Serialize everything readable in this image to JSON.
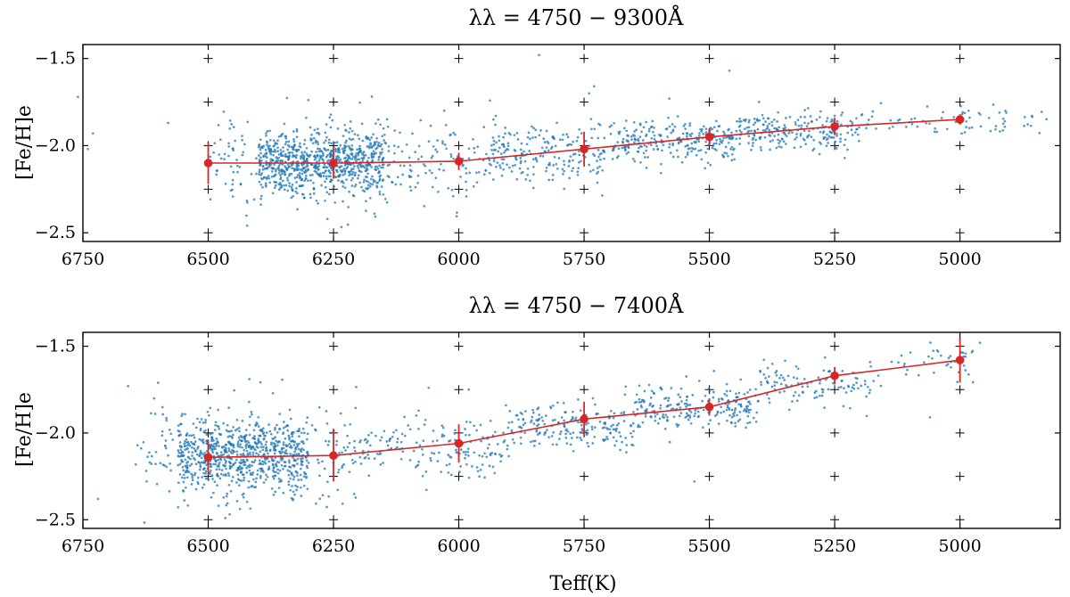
{
  "chart_data": [
    {
      "type": "scatter",
      "title": "λλ = 4750 − 9300Å",
      "xlabel": "",
      "ylabel": "[Fe/H]e",
      "xlim": [
        6750,
        4800
      ],
      "ylim": [
        -2.55,
        -1.42
      ],
      "x_reversed": true,
      "xticks": [
        6750,
        6500,
        6250,
        6000,
        5750,
        5500,
        5250,
        5000
      ],
      "xtick_labels": [
        "6750",
        "6500",
        "6250",
        "6000",
        "5750",
        "5500",
        "5250",
        "5000"
      ],
      "yticks": [
        -1.5,
        -2.0,
        -2.5
      ],
      "ytick_labels": [
        "−1.5",
        "−2.0",
        "−2.5"
      ],
      "grid_markers": "plus",
      "series": [
        {
          "kind": "scatter",
          "color": "#1f77b4",
          "clusters": [
            {
              "x_from": 6400,
              "x_to": 6150,
              "y_mean": -2.09,
              "y_spread": 0.09,
              "n": 700
            },
            {
              "x_from": 6500,
              "x_to": 5950,
              "y_mean": -2.1,
              "y_spread": 0.12,
              "n": 300
            },
            {
              "x_from": 5950,
              "x_to": 5700,
              "y_mean": -2.05,
              "y_spread": 0.09,
              "n": 220
            },
            {
              "x_from": 5700,
              "x_to": 5450,
              "y_mean": -1.97,
              "y_spread": 0.06,
              "n": 260
            },
            {
              "x_from": 5450,
              "x_to": 5200,
              "y_mean": -1.91,
              "y_spread": 0.05,
              "n": 220
            },
            {
              "x_from": 5200,
              "x_to": 4820,
              "y_mean": -1.86,
              "y_spread": 0.04,
              "n": 70
            }
          ],
          "outliers": [
            [
              6760,
              -1.72
            ],
            [
              6730,
              -1.93
            ],
            [
              6740,
              -2.02
            ],
            [
              6580,
              -1.87
            ],
            [
              5840,
              -1.48
            ],
            [
              5730,
              -1.66
            ],
            [
              5740,
              -1.7
            ],
            [
              5460,
              -1.57
            ],
            [
              5580,
              -1.73
            ]
          ]
        },
        {
          "kind": "binned-mean",
          "color": "#d62728",
          "x": [
            6500,
            6250,
            6000,
            5750,
            5500,
            5250,
            5000
          ],
          "y": [
            -2.1,
            -2.1,
            -2.09,
            -2.02,
            -1.95,
            -1.89,
            -1.85
          ],
          "yerr": [
            0.12,
            0.09,
            0.05,
            0.1,
            0.05,
            0.05,
            0.03
          ]
        }
      ]
    },
    {
      "type": "scatter",
      "title": "λλ = 4750 − 7400Å",
      "xlabel": "Teff(K)",
      "ylabel": "[Fe/H]e",
      "xlim": [
        6750,
        4800
      ],
      "ylim": [
        -2.55,
        -1.42
      ],
      "x_reversed": true,
      "xticks": [
        6750,
        6500,
        6250,
        6000,
        5750,
        5500,
        5250,
        5000
      ],
      "xtick_labels": [
        "6750",
        "6500",
        "6250",
        "6000",
        "5750",
        "5500",
        "5250",
        "5000"
      ],
      "yticks": [
        -1.5,
        -2.0,
        -2.5
      ],
      "ytick_labels": [
        "−1.5",
        "−2.0",
        "−2.5"
      ],
      "grid_markers": "plus",
      "series": [
        {
          "kind": "scatter",
          "color": "#1f77b4",
          "clusters": [
            {
              "x_from": 6560,
              "x_to": 6300,
              "y_mean": -2.13,
              "y_spread": 0.1,
              "n": 650
            },
            {
              "x_from": 6650,
              "x_to": 6200,
              "y_mean": -2.12,
              "y_spread": 0.15,
              "n": 260
            },
            {
              "x_from": 6200,
              "x_to": 5900,
              "y_mean": -2.09,
              "y_spread": 0.09,
              "n": 170
            },
            {
              "x_from": 5900,
              "x_to": 5650,
              "y_mean": -1.96,
              "y_spread": 0.07,
              "n": 190
            },
            {
              "x_from": 5650,
              "x_to": 5400,
              "y_mean": -1.86,
              "y_spread": 0.06,
              "n": 220
            },
            {
              "x_from": 5400,
              "x_to": 5150,
              "y_mean": -1.72,
              "y_spread": 0.06,
              "n": 110
            },
            {
              "x_from": 5150,
              "x_to": 4970,
              "y_mean": -1.58,
              "y_spread": 0.05,
              "n": 40
            }
          ],
          "outliers": [
            [
              6720,
              -2.38
            ],
            [
              6660,
              -1.73
            ],
            [
              6600,
              -1.71
            ],
            [
              6060,
              -1.74
            ],
            [
              5980,
              -1.75
            ],
            [
              5520,
              -1.7
            ],
            [
              5060,
              -1.91
            ],
            [
              4960,
              -1.48
            ],
            [
              5530,
              -2.28
            ]
          ]
        },
        {
          "kind": "binned-mean",
          "color": "#d62728",
          "x": [
            6500,
            6250,
            6000,
            5750,
            5500,
            5250,
            5000
          ],
          "y": [
            -2.14,
            -2.13,
            -2.06,
            -1.92,
            -1.85,
            -1.67,
            -1.58
          ],
          "yerr": [
            0.1,
            0.15,
            0.11,
            0.1,
            0.05,
            0.05,
            0.13
          ]
        }
      ]
    }
  ]
}
